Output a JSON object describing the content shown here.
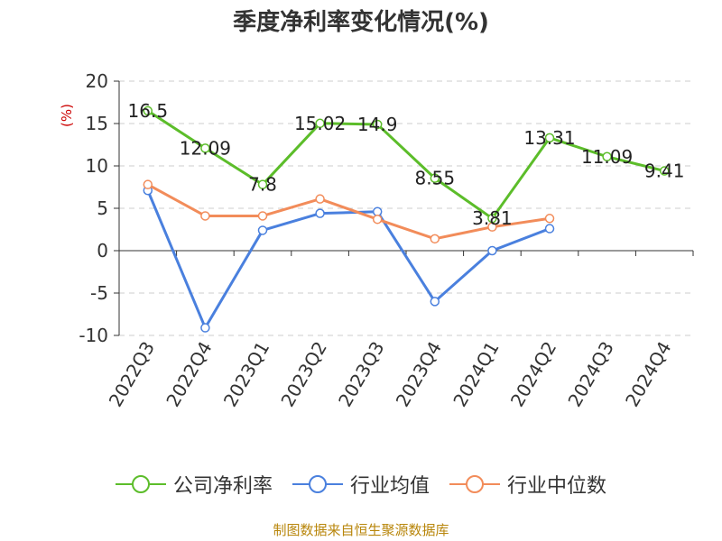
{
  "title": "季度净利率变化情况(%)",
  "source": "制图数据来自恒生聚源数据库",
  "colors": {
    "company": "#5cbd2a",
    "industry_avg": "#4a80de",
    "industry_median": "#f28c5a",
    "grid": "#cccccc",
    "axis": "#333333",
    "ylabel": "#cc0000"
  },
  "chart_data": {
    "type": "line",
    "title": "季度净利率变化情况(%)",
    "xlabel": "",
    "ylabel": "(%)",
    "ylim": [
      -10,
      20
    ],
    "yticks": [
      -10,
      -5,
      0,
      5,
      10,
      15,
      20
    ],
    "grid": true,
    "legend_position": "bottom",
    "categories": [
      "2022Q3",
      "2022Q4",
      "2023Q1",
      "2023Q2",
      "2023Q3",
      "2023Q4",
      "2024Q1",
      "2024Q2",
      "2024Q3",
      "2024Q4"
    ],
    "series": [
      {
        "name": "公司净利率",
        "color": "#5cbd2a",
        "values": [
          16.5,
          12.09,
          7.8,
          15.02,
          14.9,
          8.55,
          3.81,
          13.31,
          11.09,
          9.41
        ],
        "labels": [
          "16.5",
          "12.09",
          "7.8",
          "15.02",
          "14.9",
          "8.55",
          "3.81",
          "13.31",
          "11.09",
          "9.41"
        ]
      },
      {
        "name": "行业均值",
        "color": "#4a80de",
        "values": [
          7.1,
          -9.1,
          2.4,
          4.4,
          4.6,
          -6.0,
          0.0,
          2.6,
          null,
          null
        ]
      },
      {
        "name": "行业中位数",
        "color": "#f28c5a",
        "values": [
          7.8,
          4.1,
          4.1,
          6.1,
          3.7,
          1.4,
          2.8,
          3.8,
          null,
          null
        ]
      }
    ]
  }
}
